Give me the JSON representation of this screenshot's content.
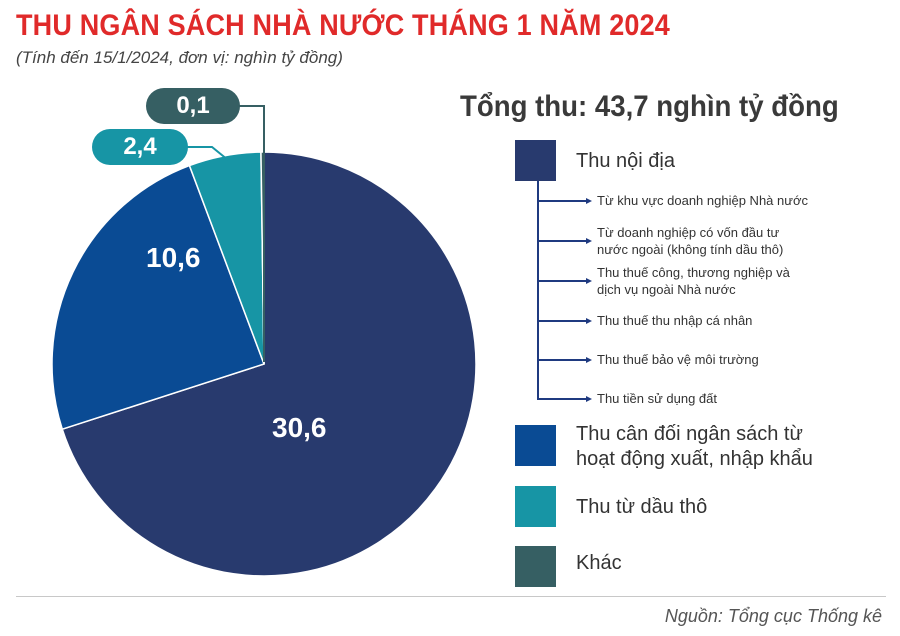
{
  "chart_data": {
    "type": "pie",
    "title": "THU NGÂN SÁCH NHÀ NƯỚC THÁNG 1 NĂM 2024",
    "subtitle": "(Tính đến 15/1/2024, đơn vị: nghìn tỷ đồng)",
    "total_label": "Tổng thu: 43,7 nghìn tỷ đồng",
    "slices": [
      {
        "name": "Thu nội địa",
        "value": 30.6,
        "label": "30,6",
        "color": "#283a6e"
      },
      {
        "name": "Thu cân đối ngân sách từ hoạt động xuất, nhập khẩu",
        "value": 10.6,
        "label": "10,6",
        "color": "#0a4b94"
      },
      {
        "name": "Thu từ dầu thô",
        "value": 2.4,
        "label": "2,4",
        "color": "#1795a5"
      },
      {
        "name": "Khác",
        "value": 0.1,
        "label": "0,1",
        "color": "#365f63"
      }
    ]
  },
  "legend": {
    "items": [
      {
        "label": "Thu nội địa",
        "color": "#283a6e"
      },
      {
        "label": "Thu cân đối ngân sách từ hoạt động xuất, nhập khẩu",
        "color": "#0a4b94"
      },
      {
        "label": "Thu từ dầu thô",
        "color": "#1795a5"
      },
      {
        "label": "Khác",
        "color": "#365f63"
      }
    ],
    "sub_items": [
      "Từ khu vực doanh nghiệp Nhà nước",
      "Từ doanh nghiệp có vốn đầu tư nước ngoài (không tính dầu thô)",
      "Thu thuế công, thương nghiệp và dịch vụ ngoài Nhà nước",
      "Thu thuế thu nhập cá nhân",
      "Thu thuế bảo vệ môi trường",
      "Thu tiền sử dụng đất"
    ]
  },
  "source": "Nguồn: Tổng cục Thống kê"
}
